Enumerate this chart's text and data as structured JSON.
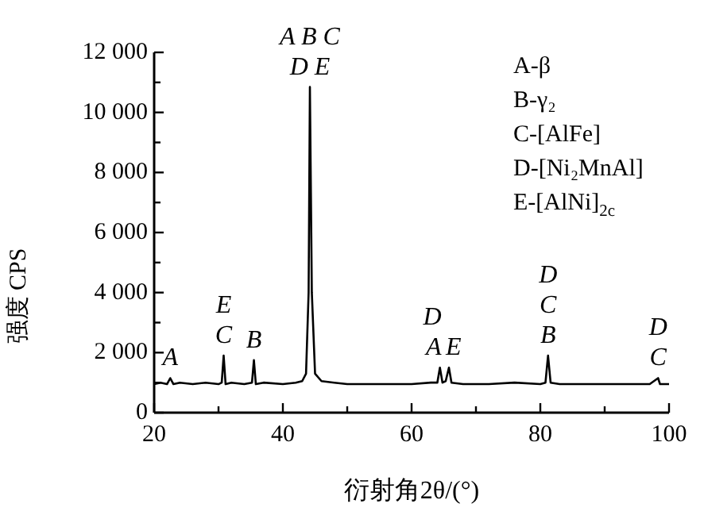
{
  "chart_data": {
    "type": "line",
    "xlabel": "衍射角2θ/(°)",
    "ylabel": "强度 CPS",
    "xlim": [
      20,
      100
    ],
    "ylim": [
      0,
      12000
    ],
    "xticks": [
      20,
      {
        "value": 30,
        "label": null
      },
      40,
      {
        "value": 50,
        "label": null
      },
      60,
      {
        "value": 70,
        "label": null
      },
      80,
      {
        "value": 90,
        "label": null
      },
      100
    ],
    "yticks": [
      0,
      {
        "value": 1000,
        "label": null
      },
      {
        "value": 2000,
        "label": "2 000"
      },
      {
        "value": 3000,
        "label": null
      },
      {
        "value": 4000,
        "label": "4 000"
      },
      {
        "value": 5000,
        "label": null
      },
      {
        "value": 6000,
        "label": "6 000"
      },
      {
        "value": 7000,
        "label": null
      },
      {
        "value": 8000,
        "label": "8 000"
      },
      {
        "value": 9000,
        "label": null
      },
      {
        "value": 10000,
        "label": "10 000"
      },
      {
        "value": 11000,
        "label": null
      },
      {
        "value": 12000,
        "label": "12 000"
      }
    ],
    "grid": false,
    "line_style": "solid",
    "series": [
      {
        "color": "#000000",
        "x": [
          20,
          21,
          22,
          22.5,
          23,
          24,
          26,
          28,
          30,
          30.5,
          30.8,
          31.1,
          32,
          34,
          35.2,
          35.5,
          35.8,
          37,
          40,
          42,
          43,
          43.6,
          44,
          44.2,
          44.5,
          45,
          46,
          48,
          50,
          55,
          60,
          63,
          64,
          64.4,
          64.8,
          65.3,
          65.8,
          66.2,
          68,
          72,
          76,
          80,
          80.8,
          81.2,
          81.6,
          83,
          88,
          93,
          97,
          98.3,
          98.6,
          100
        ],
        "values": [
          950,
          1000,
          950,
          1150,
          950,
          1000,
          950,
          1000,
          950,
          1000,
          1900,
          950,
          1000,
          950,
          1000,
          1750,
          950,
          1000,
          950,
          1000,
          1050,
          1300,
          4000,
          10850,
          4000,
          1300,
          1050,
          1000,
          950,
          950,
          950,
          1000,
          1000,
          1500,
          1000,
          1050,
          1500,
          1000,
          950,
          950,
          1000,
          950,
          1000,
          1900,
          1000,
          950,
          950,
          950,
          950,
          1150,
          950,
          950
        ]
      }
    ],
    "annotations": [
      {
        "text": "A",
        "x": 22.5,
        "y": 1150
      },
      {
        "text": "C",
        "x": 30.8,
        "y": 1900
      },
      {
        "text": "E",
        "x": 30.8,
        "y": 1900
      },
      {
        "text": "B",
        "x": 35.5,
        "y": 1750
      },
      {
        "text": "D E",
        "x": 44.2,
        "y": 10850
      },
      {
        "text": "A B C",
        "x": 44.2,
        "y": 10850
      },
      {
        "text": "A",
        "x": 64.4,
        "y": 1500
      },
      {
        "text": "D",
        "x": 64.4,
        "y": 1500
      },
      {
        "text": "E",
        "x": 65.8,
        "y": 1500
      },
      {
        "text": "B",
        "x": 81.2,
        "y": 1900
      },
      {
        "text": "C",
        "x": 81.2,
        "y": 1900
      },
      {
        "text": "D",
        "x": 81.2,
        "y": 1900
      },
      {
        "text": "C",
        "x": 98.3,
        "y": 1150
      },
      {
        "text": "D",
        "x": 98.3,
        "y": 1150
      },
      "A-β",
      "B-γ₂",
      "C-[AlFe]",
      "D-[Ni₂MnAl]",
      "E-[AlNi]$_{2c}$"
    ]
  }
}
